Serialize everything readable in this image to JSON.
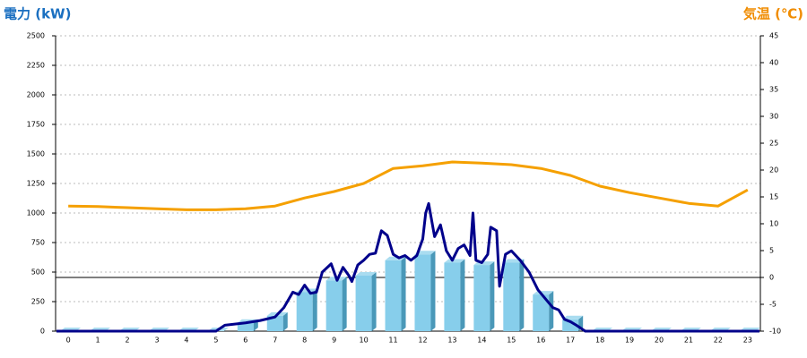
{
  "chart_data": {
    "type": "combo",
    "ylabel": "電力 (kW)",
    "y2label": "気温 (℃)",
    "categories": [
      "0",
      "1",
      "2",
      "3",
      "4",
      "5",
      "6",
      "7",
      "8",
      "9",
      "10",
      "11",
      "12",
      "13",
      "14",
      "15",
      "16",
      "17",
      "18",
      "19",
      "20",
      "21",
      "22",
      "23"
    ],
    "xlim": [
      -0.43,
      23.43
    ],
    "ylim": [
      0,
      2500
    ],
    "yticks": [
      0,
      250,
      500,
      750,
      1000,
      1250,
      1500,
      1750,
      2000,
      2250,
      2500
    ],
    "y2lim": [
      -10,
      45
    ],
    "y2ticks": [
      -10,
      -5,
      0,
      5,
      10,
      15,
      20,
      25,
      30,
      35,
      40,
      45
    ],
    "grid": true,
    "series": [
      {
        "type": "bar",
        "color": "#87ceeb",
        "values": [
          0,
          0,
          0,
          0,
          0,
          0,
          70,
          130,
          330,
          430,
          470,
          600,
          650,
          580,
          560,
          580,
          310,
          100,
          0,
          0,
          0,
          0,
          0,
          0
        ]
      },
      {
        "type": "line",
        "axis": "y2",
        "color": "#f5a000",
        "values": [
          13.3,
          13.2,
          13,
          12.8,
          12.6,
          12.6,
          12.8,
          13.3,
          14.8,
          16,
          17.5,
          20.3,
          20.8,
          21.5,
          21.3,
          21,
          20.3,
          19,
          17,
          15.8,
          14.8,
          13.8,
          13.3,
          16.3
        ]
      },
      {
        "type": "line",
        "color": "#00008b",
        "x": [
          -0.4,
          5,
          5.3,
          6,
          6.5,
          7,
          7.3,
          7.6,
          7.8,
          8,
          8.2,
          8.4,
          8.6,
          8.9,
          9.1,
          9.3,
          9.5,
          9.6,
          9.8,
          10,
          10.2,
          10.4,
          10.6,
          10.8,
          11,
          11.2,
          11.4,
          11.6,
          11.8,
          12,
          12.1,
          12.2,
          12.4,
          12.6,
          12.8,
          13,
          13.2,
          13.4,
          13.6,
          13.7,
          13.8,
          14,
          14.2,
          14.3,
          14.5,
          14.6,
          14.8,
          15,
          15.3,
          15.6,
          15.9,
          16.2,
          16.4,
          16.6,
          16.8,
          17,
          17.2,
          17.5,
          23.4
        ],
        "values": [
          0,
          0,
          50,
          70,
          90,
          120,
          200,
          330,
          310,
          390,
          320,
          330,
          500,
          570,
          430,
          540,
          470,
          420,
          560,
          600,
          650,
          660,
          850,
          810,
          650,
          620,
          640,
          600,
          640,
          780,
          1000,
          1080,
          800,
          900,
          680,
          600,
          700,
          730,
          640,
          1000,
          600,
          580,
          650,
          880,
          850,
          380,
          650,
          680,
          600,
          500,
          350,
          260,
          200,
          180,
          100,
          80,
          50,
          0,
          0
        ]
      }
    ]
  }
}
